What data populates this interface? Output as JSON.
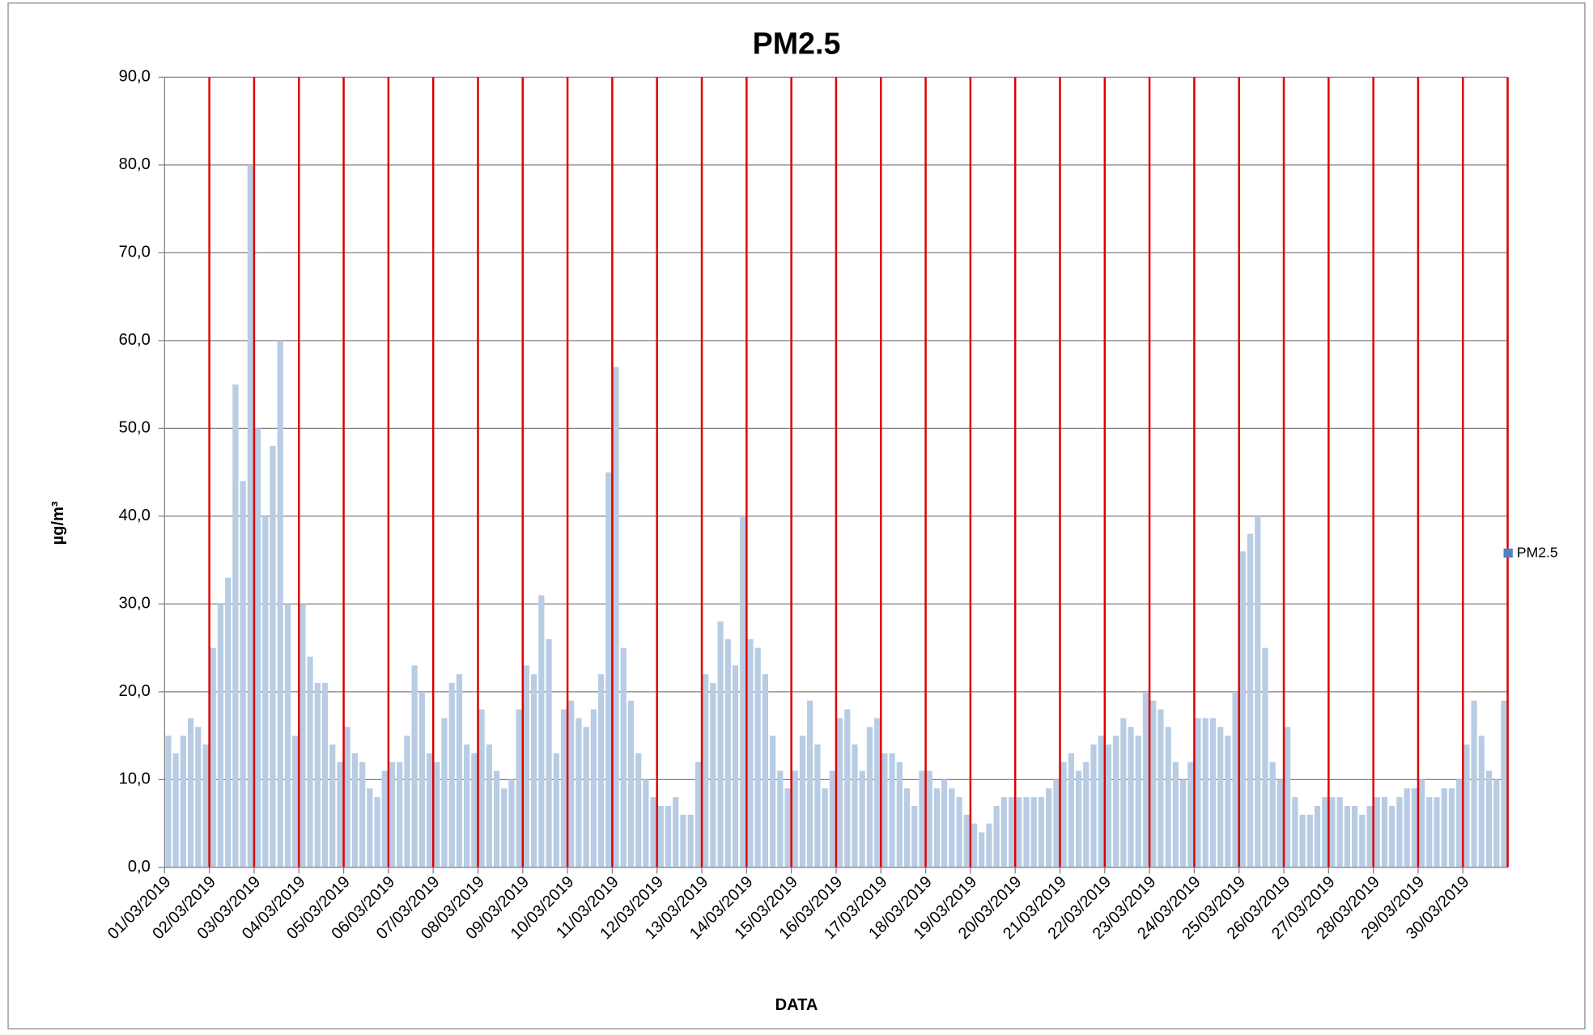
{
  "chart_data": {
    "type": "bar",
    "title": "PM2.5",
    "x_label": "DATA",
    "y_label": "µg/m³",
    "categories": [
      "01/03/2019",
      "02/03/2019",
      "03/03/2019",
      "04/03/2019",
      "05/03/2019",
      "06/03/2019",
      "07/03/2019",
      "08/03/2019",
      "09/03/2019",
      "10/03/2019",
      "11/03/2019",
      "12/03/2019",
      "13/03/2019",
      "14/03/2019",
      "15/03/2019",
      "16/03/2019",
      "17/03/2019",
      "18/03/2019",
      "19/03/2019",
      "20/03/2019",
      "21/03/2019",
      "22/03/2019",
      "23/03/2019",
      "24/03/2019",
      "25/03/2019",
      "26/03/2019",
      "27/03/2019",
      "28/03/2019",
      "29/03/2019",
      "30/03/2019"
    ],
    "series": [
      {
        "name": "PM2.5",
        "color": "#b8cce4",
        "legend_color": "#4f81bd",
        "values": [
          [
            15,
            13,
            15,
            17,
            16,
            14
          ],
          [
            25,
            30,
            33,
            55,
            44,
            80
          ],
          [
            50,
            40,
            48,
            60,
            30,
            15
          ],
          [
            30,
            24,
            21,
            21,
            14,
            12
          ],
          [
            16,
            13,
            12,
            9,
            8,
            11
          ],
          [
            12,
            12,
            15,
            23,
            20,
            13
          ],
          [
            12,
            17,
            21,
            22,
            14,
            13
          ],
          [
            18,
            14,
            11,
            9,
            10,
            18
          ],
          [
            23,
            22,
            31,
            26,
            13,
            18
          ],
          [
            19,
            17,
            16,
            18,
            22,
            45
          ],
          [
            57,
            25,
            19,
            13,
            10,
            8
          ],
          [
            7,
            7,
            8,
            6,
            6,
            12
          ],
          [
            22,
            21,
            28,
            26,
            23,
            40
          ],
          [
            26,
            25,
            22,
            15,
            11,
            9
          ],
          [
            11,
            15,
            19,
            14,
            9,
            11
          ],
          [
            17,
            18,
            14,
            11,
            16,
            17
          ],
          [
            13,
            13,
            12,
            9,
            7,
            11
          ],
          [
            11,
            9,
            10,
            9,
            8,
            6
          ],
          [
            5,
            4,
            5,
            7,
            8,
            8
          ],
          [
            8,
            8,
            8,
            8,
            9,
            10
          ],
          [
            12,
            13,
            11,
            12,
            14,
            15
          ],
          [
            14,
            15,
            17,
            16,
            15,
            20
          ],
          [
            19,
            18,
            16,
            12,
            10,
            12
          ],
          [
            17,
            17,
            17,
            16,
            15,
            20
          ],
          [
            36,
            38,
            40,
            25,
            12,
            10
          ],
          [
            16,
            8,
            6,
            6,
            7,
            8
          ],
          [
            8,
            8,
            7,
            7,
            6,
            7
          ],
          [
            8,
            8,
            7,
            8,
            9,
            9
          ],
          [
            10,
            8,
            8,
            9,
            9,
            10
          ],
          [
            14,
            19,
            15,
            11,
            10,
            19
          ]
        ]
      }
    ],
    "ylim": [
      0,
      90
    ],
    "yticks": [
      {
        "value": 0,
        "label": "0,0"
      },
      {
        "value": 10,
        "label": "10,0"
      },
      {
        "value": 20,
        "label": "20,0"
      },
      {
        "value": 30,
        "label": "30,0"
      },
      {
        "value": 40,
        "label": "40,0"
      },
      {
        "value": 50,
        "label": "50,0"
      },
      {
        "value": 60,
        "label": "60,0"
      },
      {
        "value": 70,
        "label": "70,0"
      },
      {
        "value": 80,
        "label": "80,0"
      },
      {
        "value": 90,
        "label": "90,0"
      }
    ],
    "grid": true,
    "category_grid_color": "#e00000",
    "legend": "right"
  }
}
